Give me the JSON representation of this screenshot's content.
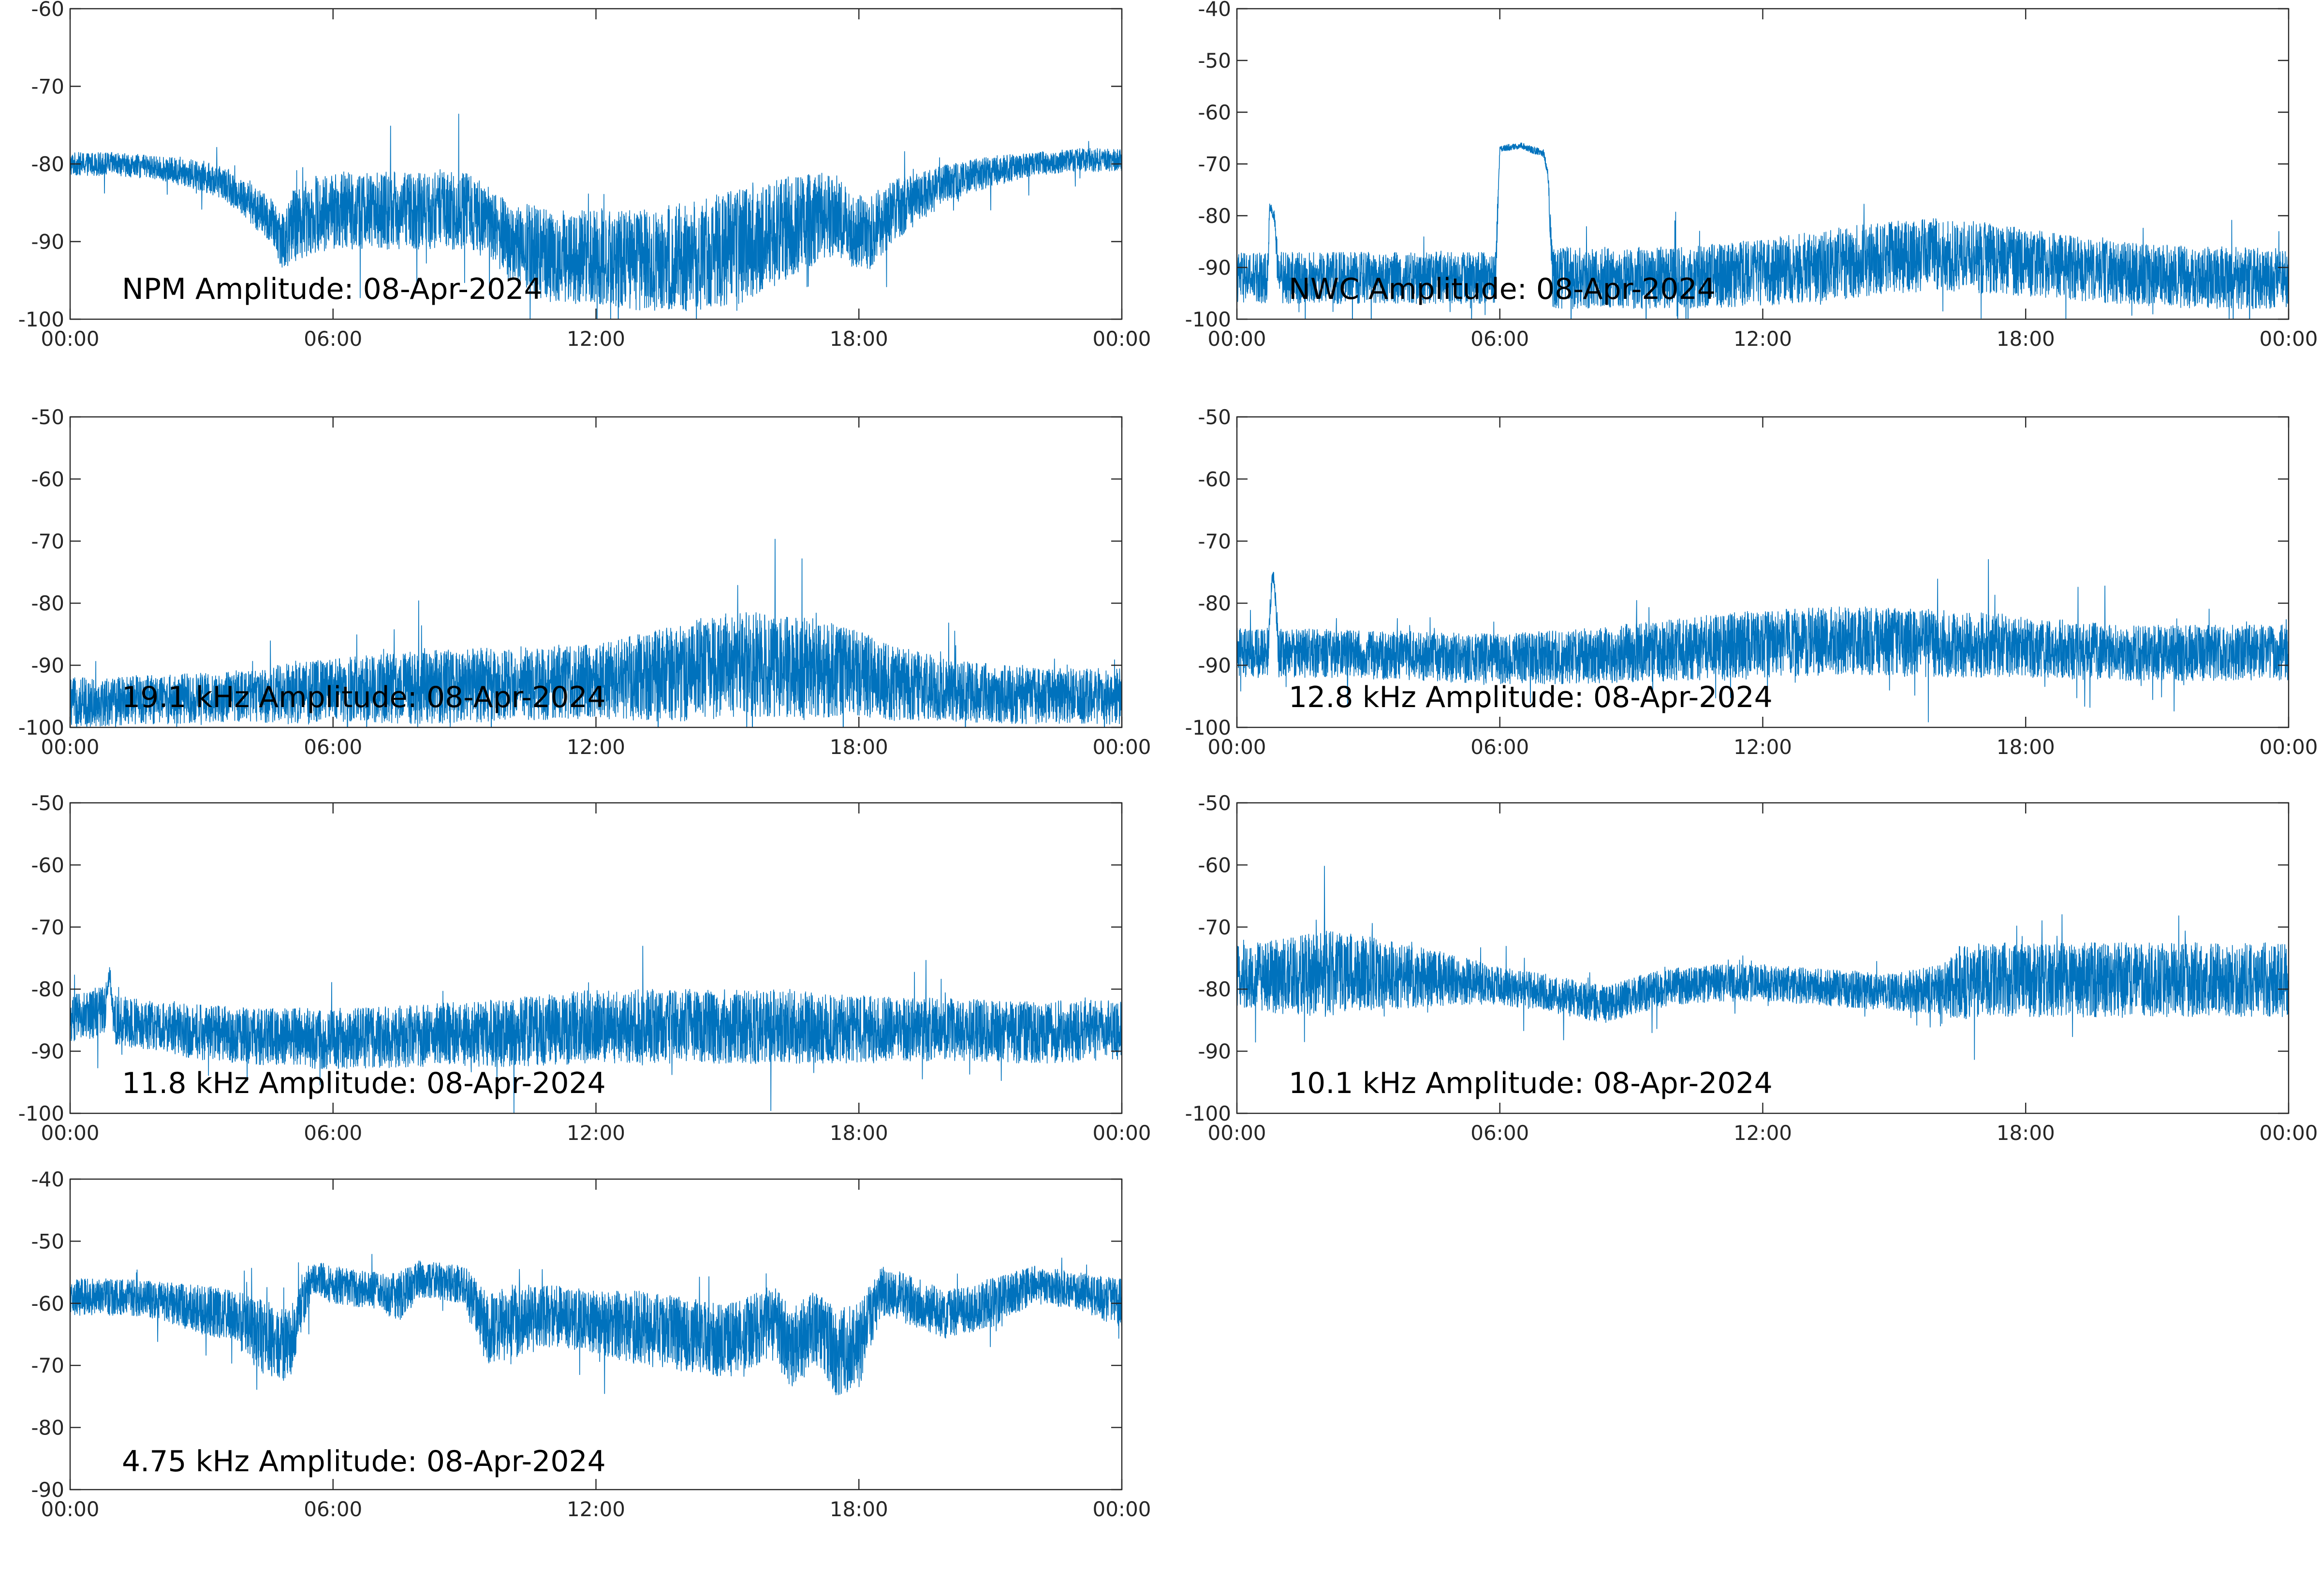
{
  "figure": {
    "trace_color": "#0072BD",
    "axis_color": "#262626"
  },
  "chart_data": [
    {
      "type": "line",
      "title": "NPM Amplitude: 08-Apr-2024",
      "xlabel": "",
      "ylabel": "",
      "xlim_hours": [
        0,
        24
      ],
      "ylim": [
        -100,
        -60
      ],
      "xticks": [
        "00:00",
        "06:00",
        "12:00",
        "18:00",
        "00:00"
      ],
      "yticks": [
        -60,
        -70,
        -80,
        -90,
        -100
      ],
      "grid": false,
      "series": [
        {
          "x_hours": [
            0,
            1,
            2,
            3,
            3.5,
            4,
            4.5,
            4.9,
            5.1,
            5.5,
            6,
            7,
            8,
            9,
            9.5,
            10,
            10.5,
            11,
            12,
            13,
            14,
            15,
            15.5,
            16,
            17,
            17.5,
            17.8,
            18.2,
            18.8,
            19.5,
            20,
            21,
            22,
            23,
            24
          ],
          "values": [
            -80,
            -80,
            -80.5,
            -81.5,
            -82.5,
            -84.5,
            -87,
            -90,
            -88,
            -86.5,
            -86,
            -86,
            -86,
            -86,
            -87,
            -90,
            -91,
            -92,
            -92,
            -92.5,
            -92,
            -91,
            -90,
            -89,
            -87,
            -86.5,
            -88.5,
            -89,
            -86,
            -84,
            -82.5,
            -81,
            -80,
            -79.5,
            -79.5
          ],
          "spread_db": [
            1.5,
            1.5,
            1.5,
            2,
            2,
            2.5,
            3,
            4,
            5,
            5,
            5,
            5,
            5,
            5,
            4.5,
            5,
            6,
            6,
            6,
            6.5,
            7,
            7.5,
            7.5,
            7,
            6,
            5,
            5,
            5,
            4,
            3,
            2.5,
            2,
            1.5,
            1.5,
            1.5
          ]
        }
      ]
    },
    {
      "type": "line",
      "title": "NWC Amplitude: 08-Apr-2024",
      "xlabel": "",
      "ylabel": "",
      "xlim_hours": [
        0,
        24
      ],
      "ylim": [
        -100,
        -40
      ],
      "xticks": [
        "00:00",
        "06:00",
        "12:00",
        "18:00",
        "00:00"
      ],
      "yticks": [
        -40,
        -50,
        -60,
        -70,
        -80,
        -90,
        -100
      ],
      "grid": false,
      "series": [
        {
          "x_hours": [
            0,
            0.7,
            0.75,
            0.85,
            0.95,
            1,
            2,
            3,
            4,
            5,
            5.9,
            6.0,
            6.5,
            7.0,
            7.1,
            7.2,
            8,
            9,
            10,
            12,
            14,
            15,
            16,
            17,
            18,
            20,
            22,
            24
          ],
          "values": [
            -92,
            -92,
            -78,
            -80,
            -92,
            -92,
            -92,
            -92,
            -92,
            -92,
            -92,
            -67,
            -66.5,
            -68,
            -72,
            -92,
            -92,
            -92,
            -92,
            -91,
            -89,
            -88,
            -87.5,
            -88,
            -89,
            -91,
            -92,
            -92
          ],
          "spread_db": [
            5,
            5,
            1,
            1,
            5,
            5,
            5,
            5,
            5,
            5,
            5,
            0.6,
            0.6,
            0.8,
            1,
            6,
            6,
            6,
            6,
            6.5,
            7,
            7,
            7,
            7,
            6.5,
            6,
            6,
            6
          ]
        }
      ]
    },
    {
      "type": "line",
      "title": "19.1 kHz Amplitude: 08-Apr-2024",
      "xlabel": "",
      "ylabel": "",
      "xlim_hours": [
        0,
        24
      ],
      "ylim": [
        -100,
        -50
      ],
      "xticks": [
        "00:00",
        "06:00",
        "12:00",
        "18:00",
        "00:00"
      ],
      "yticks": [
        -50,
        -60,
        -70,
        -80,
        -90,
        -100
      ],
      "grid": false,
      "series": [
        {
          "x_hours": [
            0,
            2,
            4,
            5,
            6,
            8,
            10,
            12,
            13,
            14,
            15,
            16,
            17,
            18,
            19,
            20,
            22,
            24
          ],
          "values": [
            -96,
            -95.5,
            -95,
            -94.5,
            -94,
            -93.5,
            -93,
            -92.5,
            -92,
            -91,
            -90,
            -90,
            -90.5,
            -91.5,
            -93,
            -94,
            -95,
            -95
          ],
          "spread_db": [
            4,
            4,
            4,
            5,
            5,
            6,
            6,
            6,
            7,
            8,
            8.5,
            8.5,
            8,
            7,
            6,
            5,
            4.5,
            4.5
          ]
        }
      ]
    },
    {
      "type": "line",
      "title": "12.8 kHz Amplitude: 08-Apr-2024",
      "xlabel": "",
      "ylabel": "",
      "xlim_hours": [
        0,
        24
      ],
      "ylim": [
        -100,
        -50
      ],
      "xticks": [
        "00:00",
        "06:00",
        "12:00",
        "18:00",
        "00:00"
      ],
      "yticks": [
        -50,
        -60,
        -70,
        -80,
        -90,
        -100
      ],
      "grid": false,
      "series": [
        {
          "x_hours": [
            0,
            0.7,
            0.8,
            0.85,
            0.95,
            2,
            4,
            6,
            8,
            10,
            12,
            14,
            16,
            18,
            20,
            22,
            24
          ],
          "values": [
            -88,
            -88,
            -76,
            -76,
            -88,
            -88,
            -88.5,
            -89,
            -88.5,
            -87.5,
            -86.5,
            -86,
            -86.5,
            -87,
            -88,
            -88,
            -88
          ],
          "spread_db": [
            4,
            4,
            1,
            1,
            4,
            4,
            4,
            4,
            4.5,
            5,
            5.5,
            5.5,
            5.5,
            5,
            4.5,
            4.5,
            4.5
          ]
        }
      ]
    },
    {
      "type": "line",
      "title": "11.8 kHz Amplitude: 08-Apr-2024",
      "xlabel": "",
      "ylabel": "",
      "xlim_hours": [
        0,
        24
      ],
      "ylim": [
        -100,
        -50
      ],
      "xticks": [
        "00:00",
        "06:00",
        "12:00",
        "18:00",
        "00:00"
      ],
      "yticks": [
        -50,
        -60,
        -70,
        -80,
        -90,
        -100
      ],
      "grid": false,
      "series": [
        {
          "x_hours": [
            0,
            0.5,
            0.8,
            0.9,
            1.0,
            2,
            3,
            4,
            6,
            8,
            10,
            12,
            14,
            16,
            18,
            20,
            22,
            24
          ],
          "values": [
            -85,
            -84,
            -83,
            -77,
            -85,
            -86,
            -87,
            -87.5,
            -88,
            -87.5,
            -87,
            -86,
            -86,
            -86,
            -86.5,
            -86.5,
            -87,
            -86.5
          ],
          "spread_db": [
            4,
            4,
            4,
            1,
            4,
            4,
            4.5,
            4.5,
            5,
            5,
            5.5,
            6,
            6,
            6,
            5.5,
            5,
            5,
            5
          ]
        }
      ]
    },
    {
      "type": "line",
      "title": "10.1 kHz Amplitude: 08-Apr-2024",
      "xlabel": "",
      "ylabel": "",
      "xlim_hours": [
        0,
        24
      ],
      "ylim": [
        -100,
        -50
      ],
      "xticks": [
        "00:00",
        "06:00",
        "12:00",
        "18:00",
        "00:00"
      ],
      "yticks": [
        -50,
        -60,
        -70,
        -80,
        -90,
        -100
      ],
      "grid": false,
      "series": [
        {
          "x_hours": [
            0,
            1,
            2,
            3,
            4,
            5,
            6,
            7,
            8,
            8.5,
            9,
            10,
            11,
            12,
            13,
            14,
            15,
            16,
            16.5,
            17,
            18,
            19,
            20,
            21,
            22,
            23,
            24
          ],
          "values": [
            -78,
            -78,
            -77.5,
            -77.5,
            -78,
            -78.5,
            -79.5,
            -80.5,
            -82,
            -82.5,
            -81,
            -79.5,
            -79,
            -79,
            -79.5,
            -80,
            -80.5,
            -80,
            -79,
            -78.5,
            -78.5,
            -78.5,
            -78.5,
            -78.5,
            -78.5,
            -78.5,
            -78.5
          ],
          "spread_db": [
            5,
            6,
            7,
            6,
            5,
            4,
            3,
            3,
            3,
            3,
            3,
            3,
            3,
            3,
            3,
            3,
            3,
            4,
            6,
            6,
            6,
            6,
            6,
            6,
            6,
            6,
            6
          ]
        }
      ]
    },
    {
      "type": "line",
      "title": "4.75 kHz Amplitude: 08-Apr-2024",
      "xlabel": "",
      "ylabel": "",
      "xlim_hours": [
        0,
        24
      ],
      "ylim": [
        -90,
        -40
      ],
      "xticks": [
        "00:00",
        "06:00",
        "12:00",
        "18:00",
        "00:00"
      ],
      "yticks": [
        -40,
        -50,
        -60,
        -70,
        -80,
        -90
      ],
      "grid": false,
      "series": [
        {
          "x_hours": [
            0,
            1,
            2,
            3,
            3.7,
            4.3,
            5,
            5.5,
            6,
            7,
            7.5,
            8,
            9,
            9.5,
            10,
            11,
            12,
            13,
            14,
            15,
            16,
            16.5,
            17,
            17.5,
            18,
            18.5,
            19,
            20,
            21,
            22,
            23,
            24
          ],
          "values": [
            -59,
            -59,
            -59.5,
            -61,
            -62,
            -65,
            -67,
            -56,
            -57,
            -58,
            -59,
            -56,
            -57,
            -64,
            -63,
            -62,
            -63,
            -64,
            -65,
            -66,
            -63,
            -67,
            -64,
            -68,
            -67,
            -58,
            -59,
            -62,
            -60,
            -57,
            -58,
            -60
          ],
          "spread_db": [
            3,
            3,
            3,
            4,
            4,
            6,
            6,
            3,
            3,
            3,
            4,
            3,
            3,
            6,
            6,
            5,
            5,
            6,
            6,
            6,
            6,
            7,
            6,
            7,
            7,
            4,
            4,
            4,
            4,
            3,
            3,
            4
          ]
        }
      ]
    }
  ]
}
